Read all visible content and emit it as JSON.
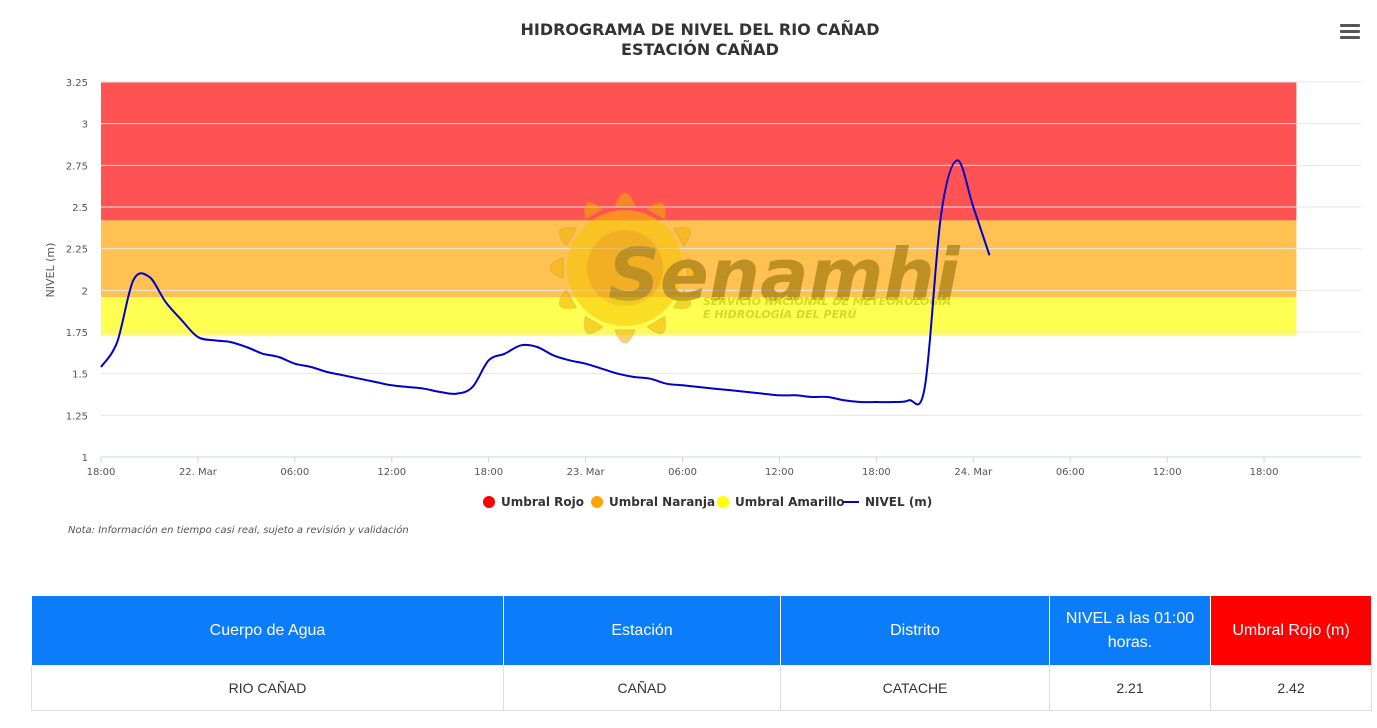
{
  "chart_data": {
    "type": "line",
    "title": "HIDROGRAMA DE NIVEL DEL RIO CAÑAD",
    "subtitle": "ESTACIÓN CAÑAD",
    "ylabel": "NIVEL (m)",
    "xlabel": "",
    "ylim": [
      1,
      3.25
    ],
    "yticks": [
      "1",
      "1.25",
      "1.5",
      "1.75",
      "2",
      "2.25",
      "2.5",
      "2.75",
      "3",
      "3.25"
    ],
    "xlim": [
      "2024-03-21 18:00",
      "2024-03-25 00:00"
    ],
    "xticks": [
      {
        "t": "2024-03-21 18:00",
        "label": "18:00"
      },
      {
        "t": "2024-03-22 00:00",
        "label": "22. Mar"
      },
      {
        "t": "2024-03-22 06:00",
        "label": "06:00"
      },
      {
        "t": "2024-03-22 12:00",
        "label": "12:00"
      },
      {
        "t": "2024-03-22 18:00",
        "label": "18:00"
      },
      {
        "t": "2024-03-23 00:00",
        "label": "23. Mar"
      },
      {
        "t": "2024-03-23 06:00",
        "label": "06:00"
      },
      {
        "t": "2024-03-23 12:00",
        "label": "12:00"
      },
      {
        "t": "2024-03-23 18:00",
        "label": "18:00"
      },
      {
        "t": "2024-03-24 00:00",
        "label": "24. Mar"
      },
      {
        "t": "2024-03-24 06:00",
        "label": "06:00"
      },
      {
        "t": "2024-03-24 12:00",
        "label": "12:00"
      },
      {
        "t": "2024-03-24 18:00",
        "label": "18:00"
      }
    ],
    "grid": true,
    "legend_position": "bottom-center",
    "bands": [
      {
        "name": "Umbral Rojo",
        "from": 2.42,
        "to": 3.25,
        "color": "#ff0000"
      },
      {
        "name": "Umbral Naranja",
        "from": 1.96,
        "to": 2.42,
        "color": "#ffa500"
      },
      {
        "name": "Umbral Amarillo",
        "from": 1.73,
        "to": 1.96,
        "color": "#ffff00"
      }
    ],
    "band_span": [
      "2024-03-21 18:00",
      "2024-03-24 20:00"
    ],
    "series": [
      {
        "name": "NIVEL (m)",
        "color": "#0000cc",
        "x": [
          "2024-03-21 18:00",
          "2024-03-21 19:00",
          "2024-03-21 20:00",
          "2024-03-21 21:00",
          "2024-03-21 22:00",
          "2024-03-21 23:00",
          "2024-03-22 00:00",
          "2024-03-22 01:00",
          "2024-03-22 02:00",
          "2024-03-22 03:00",
          "2024-03-22 04:00",
          "2024-03-22 05:00",
          "2024-03-22 06:00",
          "2024-03-22 07:00",
          "2024-03-22 08:00",
          "2024-03-22 09:00",
          "2024-03-22 10:00",
          "2024-03-22 11:00",
          "2024-03-22 12:00",
          "2024-03-22 13:00",
          "2024-03-22 14:00",
          "2024-03-22 15:00",
          "2024-03-22 16:00",
          "2024-03-22 17:00",
          "2024-03-22 18:00",
          "2024-03-22 19:00",
          "2024-03-22 20:00",
          "2024-03-22 21:00",
          "2024-03-22 22:00",
          "2024-03-22 23:00",
          "2024-03-23 00:00",
          "2024-03-23 01:00",
          "2024-03-23 02:00",
          "2024-03-23 03:00",
          "2024-03-23 04:00",
          "2024-03-23 05:00",
          "2024-03-23 06:00",
          "2024-03-23 07:00",
          "2024-03-23 08:00",
          "2024-03-23 09:00",
          "2024-03-23 10:00",
          "2024-03-23 11:00",
          "2024-03-23 12:00",
          "2024-03-23 13:00",
          "2024-03-23 14:00",
          "2024-03-23 15:00",
          "2024-03-23 16:00",
          "2024-03-23 17:00",
          "2024-03-23 18:00",
          "2024-03-23 19:00",
          "2024-03-23 20:00",
          "2024-03-23 21:00",
          "2024-03-23 22:00",
          "2024-03-23 23:00",
          "2024-03-24 00:00",
          "2024-03-24 01:00"
        ],
        "values": [
          1.54,
          1.69,
          2.06,
          2.08,
          1.93,
          1.82,
          1.72,
          1.7,
          1.69,
          1.66,
          1.62,
          1.6,
          1.56,
          1.54,
          1.51,
          1.49,
          1.47,
          1.45,
          1.43,
          1.42,
          1.41,
          1.39,
          1.38,
          1.42,
          1.58,
          1.62,
          1.67,
          1.66,
          1.61,
          1.58,
          1.56,
          1.53,
          1.5,
          1.48,
          1.47,
          1.44,
          1.43,
          1.42,
          1.41,
          1.4,
          1.39,
          1.38,
          1.37,
          1.37,
          1.36,
          1.36,
          1.34,
          1.33,
          1.33,
          1.33,
          1.34,
          1.42,
          2.45,
          2.78,
          2.5,
          2.21
        ]
      }
    ]
  },
  "legend": [
    {
      "label": "Umbral Rojo",
      "color": "#ff0000",
      "marker": "circle"
    },
    {
      "label": "Umbral Naranja",
      "color": "#ffa500",
      "marker": "circle"
    },
    {
      "label": "Umbral Amarillo",
      "color": "#ffff00",
      "marker": "circle"
    },
    {
      "label": "NIVEL (m)",
      "color": "#0000cc",
      "marker": "line"
    }
  ],
  "watermark": {
    "brand": "Senamhi",
    "tagline": [
      "SERVICIO NACIONAL DE METEOROLOGÍA",
      "E HIDROLOGÍA DEL PERÚ"
    ]
  },
  "note": "Nota: Información en tiempo casi real, sujeto a revisión y validación",
  "menu_icon": "hamburger-menu-icon",
  "table": {
    "headers": [
      {
        "label": "Cuerpo de Agua",
        "color": "#0b7dfb"
      },
      {
        "label": "Estación",
        "color": "#0b7dfb"
      },
      {
        "label": "Distrito",
        "color": "#0b7dfb"
      },
      {
        "label": "NIVEL a las 01:00 horas.",
        "color": "#0b7dfb"
      },
      {
        "label": "Umbral Rojo (m)",
        "color": "#ff0000"
      }
    ],
    "rows": [
      [
        "RIO CAÑAD",
        "CAÑAD",
        "CATACHE",
        "2.21",
        "2.42"
      ]
    ]
  }
}
